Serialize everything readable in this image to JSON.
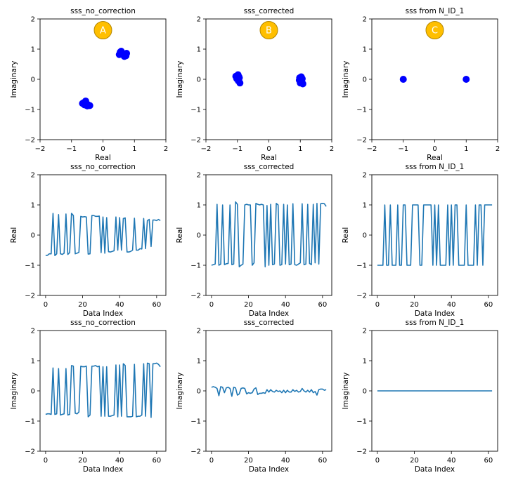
{
  "chart_data": [
    {
      "type": "scatter",
      "title": "sss_no_correction",
      "xlabel": "Real",
      "ylabel": "Imaginary",
      "xlim": [
        -2,
        2
      ],
      "ylim": [
        -2,
        2
      ],
      "xticks": [
        "−2",
        "−1",
        "0",
        "1",
        "2"
      ],
      "yticks": [
        "−2",
        "−1",
        "0",
        "1",
        "2"
      ],
      "badge": "A",
      "series": [
        {
          "color": "#0000ff",
          "points": [
            [
              0.55,
              0.9
            ],
            [
              0.6,
              0.88
            ],
            [
              0.65,
              0.84
            ],
            [
              0.7,
              0.8
            ],
            [
              0.75,
              0.86
            ],
            [
              0.52,
              0.82
            ],
            [
              0.58,
              0.93
            ],
            [
              0.68,
              0.76
            ],
            [
              0.73,
              0.78
            ],
            [
              -0.62,
              -0.78
            ],
            [
              -0.58,
              -0.85
            ],
            [
              -0.53,
              -0.8
            ],
            [
              -0.48,
              -0.84
            ],
            [
              -0.42,
              -0.87
            ],
            [
              -0.65,
              -0.8
            ],
            [
              -0.55,
              -0.72
            ],
            [
              -0.5,
              -0.88
            ]
          ]
        }
      ]
    },
    {
      "type": "scatter",
      "title": "sss_corrected",
      "xlabel": "Real",
      "ylabel": "Imaginary",
      "xlim": [
        -2,
        2
      ],
      "ylim": [
        -2,
        2
      ],
      "xticks": [
        "−2",
        "−1",
        "0",
        "1",
        "2"
      ],
      "yticks": [
        "−2",
        "−1",
        "0",
        "1",
        "2"
      ],
      "badge": "B",
      "series": [
        {
          "color": "#0000ff",
          "points": [
            [
              -1.0,
              0.12
            ],
            [
              -0.95,
              0.08
            ],
            [
              -1.02,
              0.02
            ],
            [
              -0.97,
              -0.05
            ],
            [
              -0.92,
              -0.12
            ],
            [
              -1.05,
              0.1
            ],
            [
              -0.98,
              0.15
            ],
            [
              -0.94,
              0.05
            ],
            [
              0.98,
              0.05
            ],
            [
              1.02,
              0.0
            ],
            [
              1.05,
              -0.08
            ],
            [
              1.0,
              -0.12
            ],
            [
              1.08,
              -0.15
            ],
            [
              1.03,
              0.08
            ],
            [
              0.97,
              -0.03
            ],
            [
              1.06,
              0.02
            ]
          ]
        }
      ]
    },
    {
      "type": "scatter",
      "title": "sss from N_ID_1",
      "xlabel": "Real",
      "ylabel": "Imaginary",
      "xlim": [
        -2,
        2
      ],
      "ylim": [
        -2,
        2
      ],
      "xticks": [
        "−2",
        "−1",
        "0",
        "1",
        "2"
      ],
      "yticks": [
        "−2",
        "−1",
        "0",
        "1",
        "2"
      ],
      "badge": "C",
      "series": [
        {
          "color": "#0000ff",
          "points": [
            [
              -1.0,
              0.0
            ],
            [
              1.0,
              0.0
            ]
          ]
        }
      ]
    },
    {
      "type": "line",
      "title": "sss_no_correction",
      "xlabel": "Data Index",
      "ylabel": "Real",
      "xlim": [
        -3,
        65
      ],
      "ylim": [
        -2,
        2
      ],
      "xticks": [
        "0",
        "20",
        "40",
        "60"
      ],
      "yticks": [
        "−2",
        "−1",
        "0",
        "1",
        "2"
      ],
      "series": [
        {
          "color": "#1f77b4",
          "y": [
            -0.67,
            -0.67,
            -0.62,
            -0.62,
            0.72,
            -0.68,
            -0.62,
            0.68,
            -0.62,
            -0.64,
            -0.6,
            0.7,
            -0.64,
            -0.58,
            0.72,
            0.65,
            -0.62,
            -0.6,
            -0.57,
            0.62,
            0.6,
            0.61,
            0.6,
            -0.63,
            -0.62,
            0.65,
            0.65,
            0.62,
            0.62,
            0.63,
            -0.58,
            0.6,
            -0.6,
            0.58,
            -0.55,
            -0.56,
            -0.54,
            -0.52,
            0.6,
            -0.5,
            0.58,
            -0.5,
            0.55,
            0.57,
            -0.56,
            -0.56,
            -0.54,
            -0.5,
            0.56,
            -0.5,
            -0.5,
            -0.45,
            -0.46,
            0.55,
            -0.45,
            0.48,
            0.52,
            -0.38,
            0.5,
            0.5,
            0.48,
            0.52,
            0.48
          ]
        }
      ]
    },
    {
      "type": "line",
      "title": "sss_corrected",
      "xlabel": "Data Index",
      "ylabel": "Real",
      "xlim": [
        -3,
        65
      ],
      "ylim": [
        -2,
        2
      ],
      "xticks": [
        "0",
        "20",
        "40",
        "60"
      ],
      "yticks": [
        "−2",
        "−1",
        "0",
        "1",
        "2"
      ],
      "series": [
        {
          "color": "#1f77b4",
          "y": [
            -1.0,
            -0.98,
            -0.96,
            1.02,
            -1.0,
            -0.96,
            1.0,
            -0.98,
            -0.95,
            -0.94,
            1.0,
            -0.98,
            -0.96,
            1.1,
            1.02,
            -1.05,
            -1.0,
            -0.96,
            1.0,
            1.02,
            1.0,
            1.0,
            -1.0,
            -0.92,
            1.05,
            1.02,
            1.0,
            1.02,
            1.0,
            -1.05,
            0.98,
            -1.0,
            1.02,
            -0.98,
            -0.96,
            1.05,
            1.0,
            -1.0,
            -0.98,
            1.02,
            -0.96,
            1.0,
            -0.98,
            -0.96,
            1.04,
            -0.98,
            -1.0,
            -0.96,
            -0.92,
            1.04,
            -0.98,
            -0.96,
            1.02,
            -0.94,
            -0.98,
            1.02,
            -0.92,
            1.05,
            -0.96,
            1.04,
            1.05,
            1.04,
            0.95
          ]
        }
      ]
    },
    {
      "type": "line",
      "title": "sss from N_ID_1",
      "xlabel": "Data Index",
      "ylabel": "Real",
      "xlim": [
        -3,
        65
      ],
      "ylim": [
        -2,
        2
      ],
      "xticks": [
        "0",
        "20",
        "40",
        "60"
      ],
      "yticks": [
        "−2",
        "−1",
        "0",
        "1",
        "2"
      ],
      "series": [
        {
          "color": "#1f77b4",
          "y": [
            -1,
            -1,
            -1,
            -1,
            1,
            -1,
            -1,
            1,
            -1,
            -1,
            -1,
            1,
            -1,
            -1,
            1,
            1,
            -1,
            -1,
            -1,
            1,
            1,
            1,
            1,
            -1,
            -1,
            1,
            1,
            1,
            1,
            1,
            -1,
            1,
            -1,
            1,
            -1,
            -1,
            -1,
            -1,
            1,
            -1,
            1,
            -1,
            1,
            1,
            -1,
            -1,
            -1,
            -1,
            1,
            -1,
            -1,
            -1,
            -1,
            1,
            -1,
            1,
            1,
            -1,
            1,
            1,
            1,
            1,
            1
          ]
        }
      ]
    },
    {
      "type": "line",
      "title": "sss_no_correction",
      "xlabel": "Data Index",
      "ylabel": "Imaginary",
      "xlim": [
        -3,
        65
      ],
      "ylim": [
        -2,
        2
      ],
      "xticks": [
        "0",
        "20",
        "40",
        "60"
      ],
      "yticks": [
        "−2",
        "−1",
        "0",
        "1",
        "2"
      ],
      "series": [
        {
          "color": "#1f77b4",
          "y": [
            -0.78,
            -0.76,
            -0.76,
            -0.78,
            0.76,
            -0.78,
            -0.76,
            0.74,
            -0.8,
            -0.78,
            -0.76,
            0.74,
            -0.8,
            -0.78,
            0.84,
            0.82,
            -0.74,
            -0.76,
            -0.7,
            0.82,
            0.8,
            0.8,
            0.82,
            -0.86,
            -0.8,
            0.82,
            0.82,
            0.84,
            0.8,
            0.82,
            -0.84,
            0.8,
            -0.84,
            0.8,
            -0.84,
            -0.84,
            -0.82,
            -0.8,
            0.86,
            -0.86,
            0.86,
            -0.84,
            0.9,
            0.84,
            -0.86,
            -0.86,
            -0.86,
            -0.84,
            0.88,
            -0.86,
            -0.84,
            -0.84,
            -0.8,
            0.9,
            -0.84,
            0.92,
            0.9,
            -0.88,
            0.9,
            0.9,
            0.92,
            0.88,
            0.8
          ]
        }
      ]
    },
    {
      "type": "line",
      "title": "sss_corrected",
      "xlabel": "Data Index",
      "ylabel": "Imaginary",
      "xlim": [
        -3,
        65
      ],
      "ylim": [
        -2,
        2
      ],
      "xticks": [
        "0",
        "20",
        "40",
        "60"
      ],
      "yticks": [
        "−2",
        "−1",
        "0",
        "1",
        "2"
      ],
      "series": [
        {
          "color": "#1f77b4",
          "y": [
            0.12,
            0.14,
            0.12,
            0.08,
            -0.16,
            0.14,
            0.12,
            -0.06,
            0.1,
            0.12,
            0.08,
            -0.18,
            0.12,
            0.1,
            -0.14,
            -0.1,
            0.08,
            0.1,
            0.08,
            -0.1,
            -0.06,
            -0.08,
            -0.06,
            0.06,
            0.1,
            -0.12,
            -0.08,
            -0.08,
            -0.06,
            -0.08,
            0.04,
            -0.04,
            0.04,
            -0.02,
            -0.04,
            0.02,
            -0.02,
            0.0,
            -0.06,
            0.02,
            -0.06,
            0.02,
            -0.04,
            -0.04,
            0.04,
            -0.02,
            0.02,
            -0.04,
            -0.02,
            0.08,
            0.0,
            -0.04,
            0.02,
            -0.04,
            0.04,
            -0.06,
            -0.02,
            -0.14,
            0.04,
            0.06,
            0.06,
            0.02,
            0.04
          ]
        }
      ]
    },
    {
      "type": "line",
      "title": "sss from N_ID_1",
      "xlabel": "Data Index",
      "ylabel": "Imaginary",
      "xlim": [
        -3,
        65
      ],
      "ylim": [
        -2,
        2
      ],
      "xticks": [
        "0",
        "20",
        "40",
        "60"
      ],
      "yticks": [
        "−2",
        "−1",
        "0",
        "1",
        "2"
      ],
      "series": [
        {
          "color": "#1f77b4",
          "y": [
            0,
            0,
            0,
            0,
            0,
            0,
            0,
            0,
            0,
            0,
            0,
            0,
            0,
            0,
            0,
            0,
            0,
            0,
            0,
            0,
            0,
            0,
            0,
            0,
            0,
            0,
            0,
            0,
            0,
            0,
            0,
            0,
            0,
            0,
            0,
            0,
            0,
            0,
            0,
            0,
            0,
            0,
            0,
            0,
            0,
            0,
            0,
            0,
            0,
            0,
            0,
            0,
            0,
            0,
            0,
            0,
            0,
            0,
            0,
            0,
            0,
            0,
            0
          ]
        }
      ]
    }
  ],
  "style": {
    "badge_fill": "#ffbf00",
    "badge_stroke": "#b38600",
    "axis_color": "#000000",
    "background": "#ffffff"
  }
}
